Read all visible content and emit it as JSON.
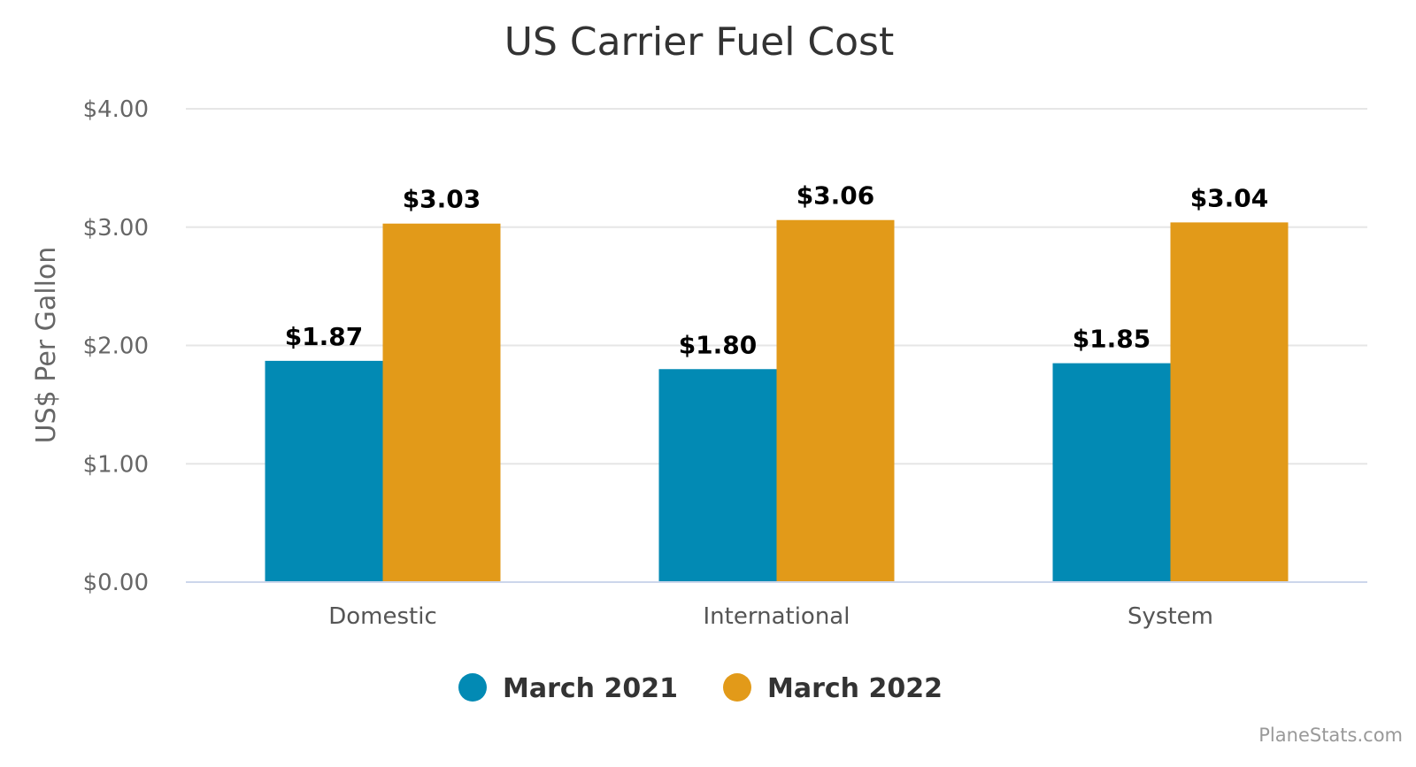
{
  "chart_data": {
    "type": "bar",
    "title": "US Carrier Fuel Cost",
    "ylabel": "US$ Per Gallon",
    "xlabel": "",
    "categories": [
      "Domestic",
      "International",
      "System"
    ],
    "series": [
      {
        "name": "March 2021",
        "color": "#028ab4",
        "values": [
          1.87,
          1.8,
          1.85
        ],
        "labels": [
          "$1.87",
          "$1.80",
          "$1.85"
        ]
      },
      {
        "name": "March 2022",
        "color": "#e29a19",
        "values": [
          3.03,
          3.06,
          3.04
        ],
        "labels": [
          "$3.03",
          "$3.06",
          "$3.04"
        ]
      }
    ],
    "ylim": [
      0,
      4
    ],
    "yticks": [
      0,
      1,
      2,
      3,
      4
    ],
    "ytick_labels": [
      "$0.00",
      "$1.00",
      "$2.00",
      "$3.00",
      "$4.00"
    ],
    "grid": true,
    "legend_position": "bottom-center"
  },
  "credit": "PlaneStats.com",
  "colors": {
    "grid": "#e6e6e6",
    "axis": "#ccd6eb"
  }
}
